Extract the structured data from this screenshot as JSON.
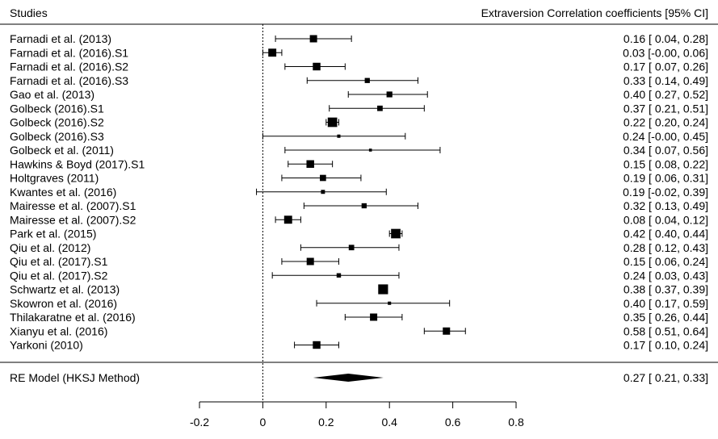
{
  "chart_data": {
    "type": "forest",
    "header_left": "Studies",
    "header_right": "Extraversion Correlation coefficients [95% CI]",
    "xlim": [
      -0.2,
      0.8
    ],
    "xticks": [
      -0.2,
      0,
      0.2,
      0.4,
      0.6,
      0.8
    ],
    "xtick_labels": [
      "-0.2",
      "0",
      "0.2",
      "0.4",
      "0.6",
      "0.8"
    ],
    "reference_line": 0,
    "studies": [
      {
        "label": "Farnadi et al. (2013)",
        "estimate": 0.16,
        "lower": 0.04,
        "upper": 0.28,
        "ci_text": "0.16 [ 0.04, 0.28]",
        "weight": 1.0
      },
      {
        "label": "Farnadi et al. (2016).S1",
        "estimate": 0.03,
        "lower": -0.0,
        "upper": 0.06,
        "ci_text": "0.03 [-0.00, 0.06]",
        "weight": 1.1
      },
      {
        "label": "Farnadi et al. (2016).S2",
        "estimate": 0.17,
        "lower": 0.07,
        "upper": 0.26,
        "ci_text": "0.17 [ 0.07, 0.26]",
        "weight": 1.05
      },
      {
        "label": "Farnadi et al. (2016).S3",
        "estimate": 0.33,
        "lower": 0.14,
        "upper": 0.49,
        "ci_text": "0.33 [ 0.14, 0.49]",
        "weight": 0.7
      },
      {
        "label": "Gao et al. (2013)",
        "estimate": 0.4,
        "lower": 0.27,
        "upper": 0.52,
        "ci_text": "0.40 [ 0.27, 0.52]",
        "weight": 0.8
      },
      {
        "label": "Golbeck (2016).S1",
        "estimate": 0.37,
        "lower": 0.21,
        "upper": 0.51,
        "ci_text": "0.37 [ 0.21, 0.51]",
        "weight": 0.75
      },
      {
        "label": "Golbeck (2016).S2",
        "estimate": 0.22,
        "lower": 0.2,
        "upper": 0.24,
        "ci_text": "0.22 [ 0.20, 0.24]",
        "weight": 1.3
      },
      {
        "label": "Golbeck (2016).S3",
        "estimate": 0.24,
        "lower": -0.0,
        "upper": 0.45,
        "ci_text": "0.24 [-0.00, 0.45]",
        "weight": 0.45
      },
      {
        "label": "Golbeck et al. (2011)",
        "estimate": 0.34,
        "lower": 0.07,
        "upper": 0.56,
        "ci_text": "0.34 [ 0.07, 0.56]",
        "weight": 0.4
      },
      {
        "label": "Hawkins & Boyd (2017).S1",
        "estimate": 0.15,
        "lower": 0.08,
        "upper": 0.22,
        "ci_text": "0.15 [ 0.08, 0.22]",
        "weight": 1.05
      },
      {
        "label": "Holtgraves (2011)",
        "estimate": 0.19,
        "lower": 0.06,
        "upper": 0.31,
        "ci_text": "0.19 [ 0.06, 0.31]",
        "weight": 0.85
      },
      {
        "label": "Kwantes et al. (2016)",
        "estimate": 0.19,
        "lower": -0.02,
        "upper": 0.39,
        "ci_text": "0.19 [-0.02, 0.39]",
        "weight": 0.55
      },
      {
        "label": "Mairesse et al. (2007).S1",
        "estimate": 0.32,
        "lower": 0.13,
        "upper": 0.49,
        "ci_text": "0.32 [ 0.13, 0.49]",
        "weight": 0.7
      },
      {
        "label": "Mairesse et al. (2007).S2",
        "estimate": 0.08,
        "lower": 0.04,
        "upper": 0.12,
        "ci_text": "0.08 [ 0.04, 0.12]",
        "weight": 1.1
      },
      {
        "label": "Park et al. (2015)",
        "estimate": 0.42,
        "lower": 0.4,
        "upper": 0.44,
        "ci_text": "0.42 [ 0.40, 0.44]",
        "weight": 1.3
      },
      {
        "label": "Qiu et al. (2012)",
        "estimate": 0.28,
        "lower": 0.12,
        "upper": 0.43,
        "ci_text": "0.28 [ 0.12, 0.43]",
        "weight": 0.75
      },
      {
        "label": "Qiu et al. (2017).S1",
        "estimate": 0.15,
        "lower": 0.06,
        "upper": 0.24,
        "ci_text": "0.15 [ 0.06, 0.24]",
        "weight": 1.0
      },
      {
        "label": "Qiu et al. (2017).S2",
        "estimate": 0.24,
        "lower": 0.03,
        "upper": 0.43,
        "ci_text": "0.24 [ 0.03, 0.43]",
        "weight": 0.6
      },
      {
        "label": "Schwartz et al. (2013)",
        "estimate": 0.38,
        "lower": 0.37,
        "upper": 0.39,
        "ci_text": "0.38 [ 0.37, 0.39]",
        "weight": 1.35
      },
      {
        "label": "Skowron et al. (2016)",
        "estimate": 0.4,
        "lower": 0.17,
        "upper": 0.59,
        "ci_text": "0.40 [ 0.17, 0.59]",
        "weight": 0.45
      },
      {
        "label": "Thilakaratne et al. (2016)",
        "estimate": 0.35,
        "lower": 0.26,
        "upper": 0.44,
        "ci_text": "0.35 [ 0.26, 0.44]",
        "weight": 1.0
      },
      {
        "label": "Xianyu et al. (2016)",
        "estimate": 0.58,
        "lower": 0.51,
        "upper": 0.64,
        "ci_text": "0.58 [ 0.51, 0.64]",
        "weight": 1.0
      },
      {
        "label": "Yarkoni (2010)",
        "estimate": 0.17,
        "lower": 0.1,
        "upper": 0.24,
        "ci_text": "0.17 [ 0.10, 0.24]",
        "weight": 1.05
      }
    ],
    "summary": {
      "label": "RE Model (HKSJ Method)",
      "estimate": 0.27,
      "lower": 0.21,
      "upper": 0.33,
      "ci_text": "0.27 [ 0.21, 0.33]"
    }
  }
}
